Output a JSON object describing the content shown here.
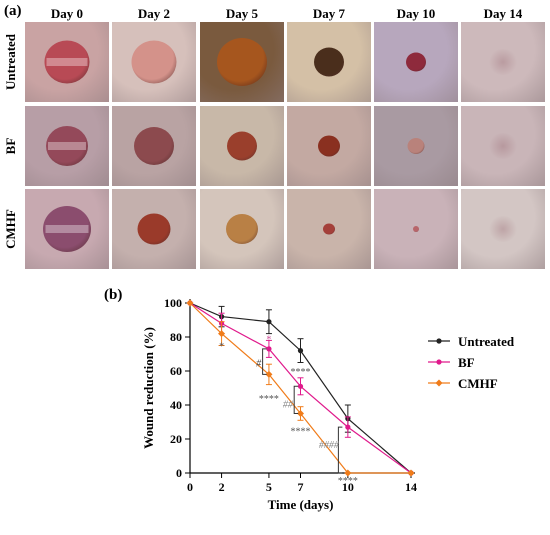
{
  "panel_a_label": "(a)",
  "panel_b_label": "(b)",
  "days": [
    "Day 0",
    "Day 2",
    "Day 5",
    "Day 7",
    "Day 10",
    "Day 14"
  ],
  "rows": [
    "Untreated",
    "BF",
    "CMHF"
  ],
  "tiles": [
    [
      {
        "size": 0.62,
        "color": "#b84a55",
        "skin": "#c9a3a3",
        "sheen": true
      },
      {
        "size": 0.62,
        "color": "#d4928a",
        "skin": "#d6c0bb",
        "sheen": false
      },
      {
        "size": 0.7,
        "color": "#a6561e",
        "skin": "#7a5a3e",
        "sheen": false
      },
      {
        "size": 0.42,
        "color": "#4a2e1c",
        "skin": "#d4c0a6",
        "sheen": false
      },
      {
        "size": 0.28,
        "color": "#8e2a3c",
        "skin": "#b7a7bd",
        "sheen": false
      },
      {
        "size": 0.0,
        "color": "#c7a8ad",
        "skin": "#cdb9bb",
        "sheen": false
      }
    ],
    [
      {
        "size": 0.58,
        "color": "#94495a",
        "skin": "#b79ea6",
        "sheen": true
      },
      {
        "size": 0.55,
        "color": "#8c4a4e",
        "skin": "#b9a3a3",
        "sheen": false
      },
      {
        "size": 0.42,
        "color": "#9a3f2c",
        "skin": "#c8b8a8",
        "sheen": false
      },
      {
        "size": 0.3,
        "color": "#8a3020",
        "skin": "#c3a9a2",
        "sheen": false
      },
      {
        "size": 0.24,
        "color": "#b9827b",
        "skin": "#a99aa2",
        "sheen": false
      },
      {
        "size": 0.0,
        "color": "#bfa4a8",
        "skin": "#c9b5b8",
        "sheen": false
      }
    ],
    [
      {
        "size": 0.66,
        "color": "#8b4d6e",
        "skin": "#c7a9b0",
        "sheen": true
      },
      {
        "size": 0.46,
        "color": "#9a3a2a",
        "skin": "#c4b0ad",
        "sheen": false
      },
      {
        "size": 0.44,
        "color": "#b98045",
        "skin": "#d4c5bb",
        "sheen": false
      },
      {
        "size": 0.16,
        "color": "#a4403a",
        "skin": "#c9b4aa",
        "sheen": false
      },
      {
        "size": 0.08,
        "color": "#b8656a",
        "skin": "#c9b2b8",
        "sheen": false
      },
      {
        "size": 0.0,
        "color": "#cdbcbc",
        "skin": "#d3c6c4",
        "sheen": false
      }
    ]
  ],
  "chart_data": {
    "type": "line",
    "xlabel": "Time (days)",
    "ylabel": "Wound reduction (%)",
    "x": [
      0,
      2,
      5,
      7,
      10,
      14
    ],
    "xticks": [
      0,
      2,
      5,
      7,
      10,
      14
    ],
    "yticks": [
      0,
      20,
      40,
      60,
      80,
      100
    ],
    "xlim": [
      0,
      14
    ],
    "ylim": [
      0,
      100
    ],
    "legend_position": "right",
    "series": [
      {
        "name": "Untreated",
        "color": "#222222",
        "marker": "circle",
        "points": [
          [
            0,
            100
          ],
          [
            2,
            92
          ],
          [
            5,
            89
          ],
          [
            7,
            72
          ],
          [
            10,
            32
          ],
          [
            14,
            0
          ]
        ],
        "errors": [
          0,
          6,
          7,
          7,
          8,
          0
        ]
      },
      {
        "name": "BF",
        "color": "#e01a8c",
        "marker": "circle",
        "points": [
          [
            0,
            100
          ],
          [
            2,
            88
          ],
          [
            5,
            73
          ],
          [
            7,
            51
          ],
          [
            10,
            27
          ],
          [
            14,
            0
          ]
        ],
        "errors": [
          0,
          6,
          5,
          5,
          6,
          0
        ]
      },
      {
        "name": "CMHF",
        "color": "#f07c1a",
        "marker": "diamond",
        "points": [
          [
            0,
            100
          ],
          [
            2,
            82
          ],
          [
            5,
            58
          ],
          [
            7,
            35
          ],
          [
            10,
            0
          ],
          [
            14,
            0
          ]
        ],
        "errors": [
          0,
          7,
          6,
          4,
          0,
          0
        ]
      }
    ],
    "annotations": [
      {
        "text": "*",
        "x": 2,
        "y": 75,
        "color": "#555555"
      },
      {
        "text": "#",
        "x": 4.35,
        "y": 65,
        "color": "#444444"
      },
      {
        "text": "*",
        "x": 5,
        "y": 79,
        "color": "#d04e9a"
      },
      {
        "text": "****",
        "x": 5,
        "y": 44,
        "color": "#555555"
      },
      {
        "text": "****",
        "x": 7,
        "y": 60,
        "color": "#555555"
      },
      {
        "text": "##",
        "x": 6.2,
        "y": 41,
        "color": "#888888"
      },
      {
        "text": "****",
        "x": 7,
        "y": 25,
        "color": "#555555"
      },
      {
        "text": "####",
        "x": 8.8,
        "y": 17,
        "color": "#888888"
      },
      {
        "text": "****",
        "x": 10,
        "y": -4,
        "color": "#555555"
      }
    ],
    "brackets": [
      {
        "x": 4.6,
        "y1": 73,
        "y2": 58
      },
      {
        "x": 6.6,
        "y1": 51,
        "y2": 35
      },
      {
        "x": 9.4,
        "y1": 27,
        "y2": 0
      }
    ]
  }
}
